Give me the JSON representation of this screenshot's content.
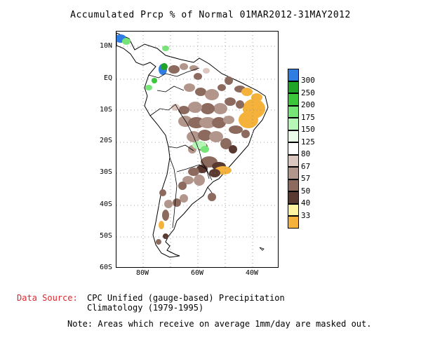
{
  "title": "Accumulated Prcp % of Normal 01MAR2012-31MAY2012",
  "axes": {
    "lat_ticks": [
      "10N",
      "EQ",
      "10S",
      "20S",
      "30S",
      "40S",
      "50S",
      "60S"
    ],
    "lon_ticks": [
      "80W",
      "60W",
      "40W"
    ]
  },
  "legend": {
    "entries": [
      {
        "label": "300",
        "color": "#2f7de1"
      },
      {
        "label": "250",
        "color": "#1fa427"
      },
      {
        "label": "200",
        "color": "#3cc63c"
      },
      {
        "label": "175",
        "color": "#76e476"
      },
      {
        "label": "150",
        "color": "#b6f6b6"
      },
      {
        "label": "125",
        "color": "#e8fce8"
      },
      {
        "label": "80",
        "color": "#ffffff"
      },
      {
        "label": "67",
        "color": "#dcc6c0"
      },
      {
        "label": "57",
        "color": "#b2968c"
      },
      {
        "label": "50",
        "color": "#8c6a5e"
      },
      {
        "label": "40",
        "color": "#5a3a30"
      },
      {
        "label": "33",
        "color": "#fdf3a0"
      },
      {
        "label": "",
        "color": "#f5b23a"
      }
    ]
  },
  "footer": {
    "source_key": "Data Source:",
    "source_line1": "CPC Unified (gauge-based) Precipitation",
    "source_line2": "Climatology (1979-1995)",
    "note": "Note: Areas which receive on average 1mm/day are masked out."
  }
}
